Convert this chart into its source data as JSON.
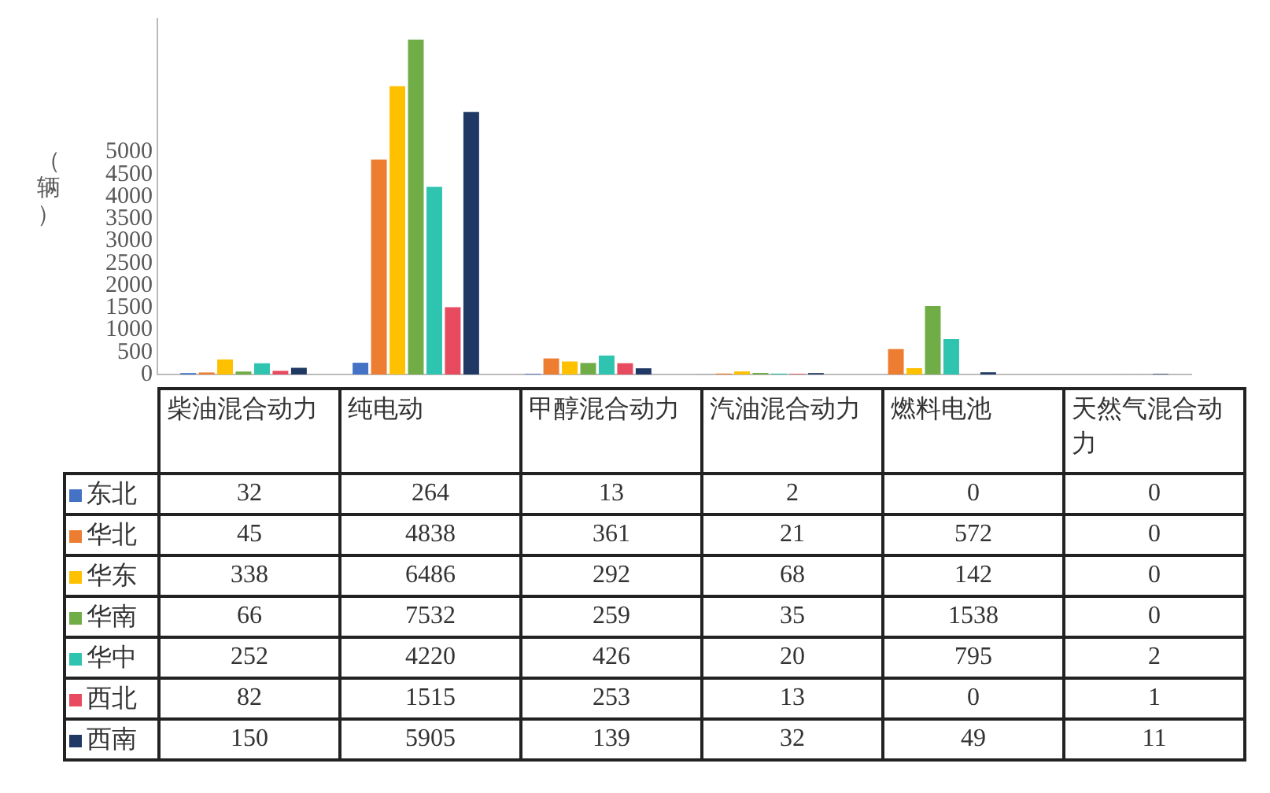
{
  "chart_data": {
    "type": "bar",
    "ylabel": "（辆）",
    "categories": [
      "柴油混合动力",
      "纯电动",
      "甲醇混合动力",
      "汽油混合动力",
      "燃料电池",
      "天然气混合动力"
    ],
    "series": [
      {
        "name": "东北",
        "color": "#4472c4",
        "values": [
          32,
          264,
          13,
          2,
          0,
          0
        ]
      },
      {
        "name": "华北",
        "color": "#ed7d31",
        "values": [
          45,
          4838,
          361,
          21,
          572,
          0
        ]
      },
      {
        "name": "华东",
        "color": "#ffc000",
        "values": [
          338,
          6486,
          292,
          68,
          142,
          0
        ]
      },
      {
        "name": "华南",
        "color": "#70ad47",
        "values": [
          66,
          7532,
          259,
          35,
          1538,
          0
        ]
      },
      {
        "name": "华中",
        "color": "#2ec4b0",
        "values": [
          252,
          4220,
          426,
          20,
          795,
          2
        ]
      },
      {
        "name": "西北",
        "color": "#e84a5f",
        "values": [
          82,
          1515,
          253,
          13,
          0,
          1
        ]
      },
      {
        "name": "西南",
        "color": "#203864",
        "values": [
          150,
          5905,
          139,
          32,
          49,
          11
        ]
      }
    ],
    "ylim": [
      0,
      8000
    ],
    "yticks": [
      0,
      500,
      1000,
      1500,
      2000,
      2500,
      3000,
      3500,
      4000,
      4500,
      5000
    ],
    "grid": false,
    "legend": "bottom",
    "data_labels": true
  }
}
